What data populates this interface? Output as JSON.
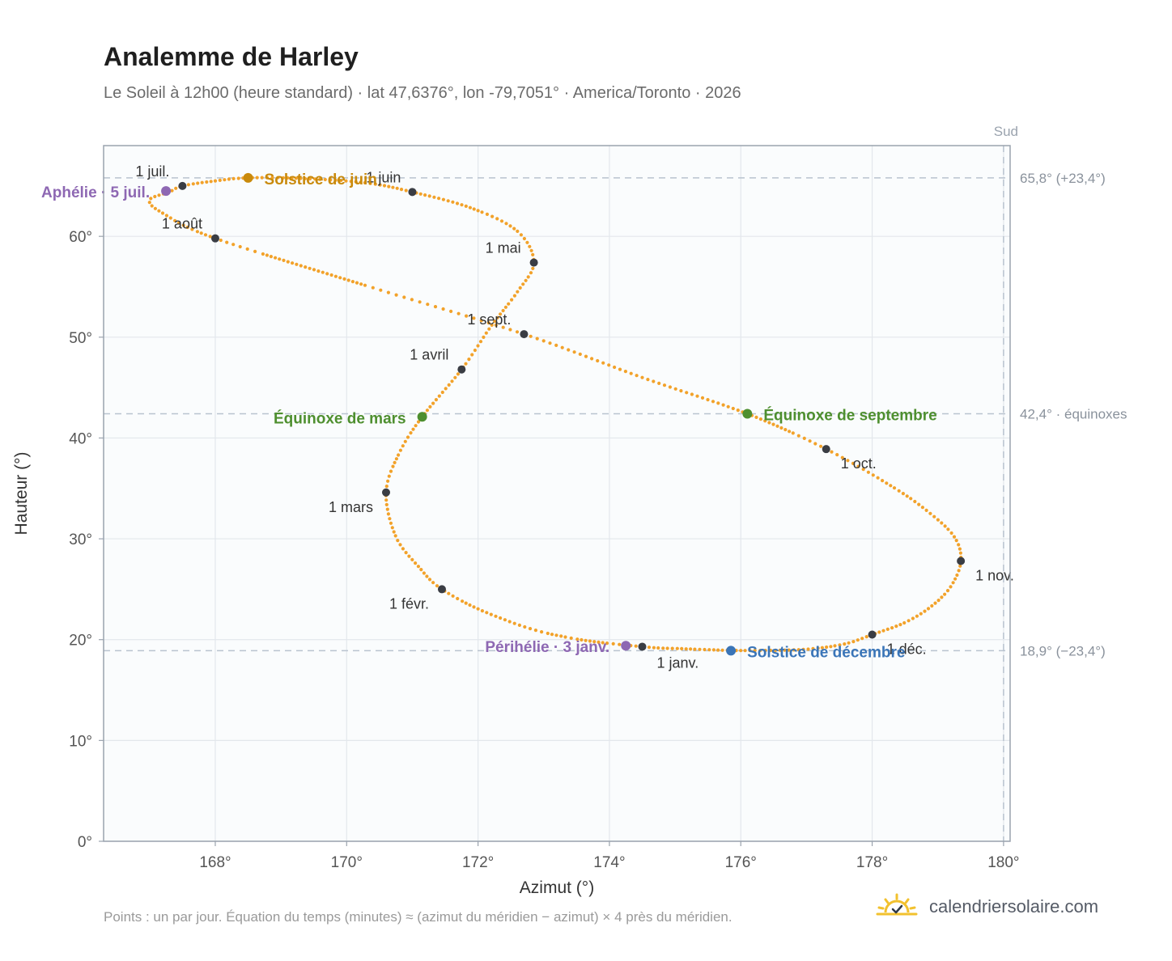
{
  "header": {
    "title": "Analemme de Harley",
    "subtitle": "Le Soleil à 12h00 (heure standard) · lat 47,6376°, lon -79,7051° · America/Toronto · 2026"
  },
  "footer": {
    "note": "Points : un par jour. Équation du temps (minutes) ≈ (azimut du méridien − azimut) × 4 près du méridien.",
    "brand": "calendriersolaire.com"
  },
  "chart_data": {
    "type": "scatter",
    "xlabel": "Azimut (°)",
    "ylabel": "Hauteur (°)",
    "xlim": [
      166.3,
      180.1
    ],
    "ylim": [
      0,
      69
    ],
    "x_ticks": [
      168,
      170,
      172,
      174,
      176,
      178,
      180
    ],
    "x_tick_labels": [
      "168°",
      "170°",
      "172°",
      "174°",
      "176°",
      "178°",
      "180°"
    ],
    "y_ticks": [
      0,
      10,
      20,
      30,
      40,
      50,
      60
    ],
    "y_tick_labels": [
      "0°",
      "10°",
      "20°",
      "30°",
      "40°",
      "50°",
      "60°"
    ],
    "grid": true,
    "south_line": {
      "x": 180,
      "label": "Sud"
    },
    "reference_lines": [
      {
        "y": 65.8,
        "label": "65,8° (+23,4°)"
      },
      {
        "y": 42.4,
        "label": "42,4° · équinoxes"
      },
      {
        "y": 18.9,
        "label": "18,9° (−23,4°)"
      }
    ],
    "series": [
      {
        "values": [
          {
            "x": 174.5,
            "y": 19.3
          },
          {
            "x": 175.1,
            "y": 19.1
          },
          {
            "x": 175.6,
            "y": 18.98
          },
          {
            "x": 176.0,
            "y": 18.92
          },
          {
            "x": 176.6,
            "y": 18.95
          },
          {
            "x": 177.1,
            "y": 19.1
          },
          {
            "x": 177.6,
            "y": 19.6
          },
          {
            "x": 178.0,
            "y": 20.5
          },
          {
            "x": 178.5,
            "y": 21.7
          },
          {
            "x": 178.9,
            "y": 23.3
          },
          {
            "x": 179.2,
            "y": 25.3
          },
          {
            "x": 179.35,
            "y": 27.8
          },
          {
            "x": 179.25,
            "y": 30.2
          },
          {
            "x": 178.85,
            "y": 32.7
          },
          {
            "x": 178.3,
            "y": 35.2
          },
          {
            "x": 177.3,
            "y": 38.9
          },
          {
            "x": 176.1,
            "y": 42.4
          },
          {
            "x": 174.5,
            "y": 46.0
          },
          {
            "x": 172.7,
            "y": 50.3
          },
          {
            "x": 170.4,
            "y": 54.9
          },
          {
            "x": 168.0,
            "y": 59.8
          },
          {
            "x": 167.2,
            "y": 62.3
          },
          {
            "x": 167.0,
            "y": 63.6
          },
          {
            "x": 167.3,
            "y": 64.4
          },
          {
            "x": 167.5,
            "y": 65.0
          },
          {
            "x": 168.0,
            "y": 65.5
          },
          {
            "x": 168.5,
            "y": 65.8
          },
          {
            "x": 169.3,
            "y": 65.75
          },
          {
            "x": 170.3,
            "y": 65.3
          },
          {
            "x": 171.0,
            "y": 64.4
          },
          {
            "x": 171.9,
            "y": 62.8
          },
          {
            "x": 172.6,
            "y": 60.5
          },
          {
            "x": 172.85,
            "y": 57.4
          },
          {
            "x": 172.6,
            "y": 54.5
          },
          {
            "x": 172.2,
            "y": 51.1
          },
          {
            "x": 171.75,
            "y": 46.8
          },
          {
            "x": 171.15,
            "y": 42.1
          },
          {
            "x": 170.8,
            "y": 38.5
          },
          {
            "x": 170.6,
            "y": 34.6
          },
          {
            "x": 170.75,
            "y": 30.2
          },
          {
            "x": 171.1,
            "y": 27.2
          },
          {
            "x": 171.45,
            "y": 25.0
          },
          {
            "x": 172.2,
            "y": 22.5
          },
          {
            "x": 173.3,
            "y": 20.3
          },
          {
            "x": 174.5,
            "y": 19.3
          }
        ]
      }
    ],
    "month_markers": [
      {
        "label": "1 janv.",
        "x": 174.5,
        "y": 19.3
      },
      {
        "label": "1 févr.",
        "x": 171.45,
        "y": 25.0
      },
      {
        "label": "1 mars",
        "x": 170.6,
        "y": 34.6
      },
      {
        "label": "1 avril",
        "x": 171.75,
        "y": 46.8
      },
      {
        "label": "1 mai",
        "x": 172.85,
        "y": 57.4
      },
      {
        "label": "1 juin",
        "x": 171.0,
        "y": 64.4
      },
      {
        "label": "1 juil.",
        "x": 167.5,
        "y": 65.0
      },
      {
        "label": "1 août",
        "x": 168.0,
        "y": 59.8
      },
      {
        "label": "1 sept.",
        "x": 172.7,
        "y": 50.3
      },
      {
        "label": "1 oct.",
        "x": 177.3,
        "y": 38.9
      },
      {
        "label": "1 nov.",
        "x": 179.35,
        "y": 27.8
      },
      {
        "label": "1 déc.",
        "x": 178.0,
        "y": 20.5
      }
    ],
    "events": [
      {
        "label": "Solstice de juin",
        "x": 168.5,
        "y": 65.8,
        "color": "#c98a0c"
      },
      {
        "label": "Aphélie · 5 juil.",
        "x": 167.25,
        "y": 64.5,
        "color": "#8e68b3"
      },
      {
        "label": "Équinoxe de mars",
        "x": 171.15,
        "y": 42.1,
        "color": "#4e8f2f"
      },
      {
        "label": "Équinoxe de septembre",
        "x": 176.1,
        "y": 42.4,
        "color": "#4e8f2f"
      },
      {
        "label": "Périhélie · 3 janv.",
        "x": 174.25,
        "y": 19.4,
        "color": "#8e68b3"
      },
      {
        "label": "Solstice de décembre",
        "x": 175.85,
        "y": 18.9,
        "color": "#3a75b8"
      }
    ],
    "colors": {
      "curve": "#f2a22a",
      "marker": "#3a3d44",
      "reference": "#b9c3cf",
      "plot_bg": "#fafcfd"
    }
  }
}
